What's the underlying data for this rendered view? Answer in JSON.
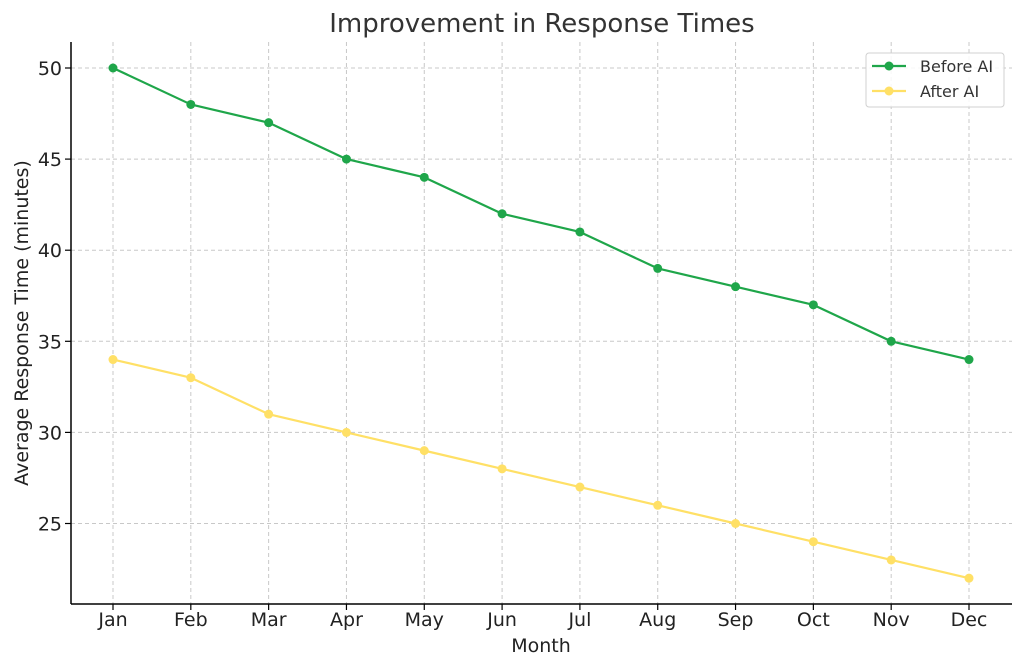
{
  "chart_data": {
    "type": "line",
    "title": "Improvement in Response Times",
    "xlabel": "Month",
    "ylabel": "Average Response Time (minutes)",
    "categories": [
      "Jan",
      "Feb",
      "Mar",
      "Apr",
      "May",
      "Jun",
      "Jul",
      "Aug",
      "Sep",
      "Oct",
      "Nov",
      "Dec"
    ],
    "yticks": [
      25,
      30,
      35,
      40,
      45,
      50
    ],
    "ylim": [
      20.6,
      51.4
    ],
    "grid": true,
    "legend_position": "top-right",
    "series": [
      {
        "name": "Before AI",
        "color": "#1fa64a",
        "values": [
          50,
          48,
          47,
          45,
          44,
          42,
          41,
          39,
          38,
          37,
          35,
          34
        ]
      },
      {
        "name": "After AI",
        "color": "#ffe066",
        "values": [
          34,
          33,
          31,
          30,
          29,
          28,
          27,
          26,
          25,
          24,
          23,
          22
        ]
      }
    ]
  }
}
